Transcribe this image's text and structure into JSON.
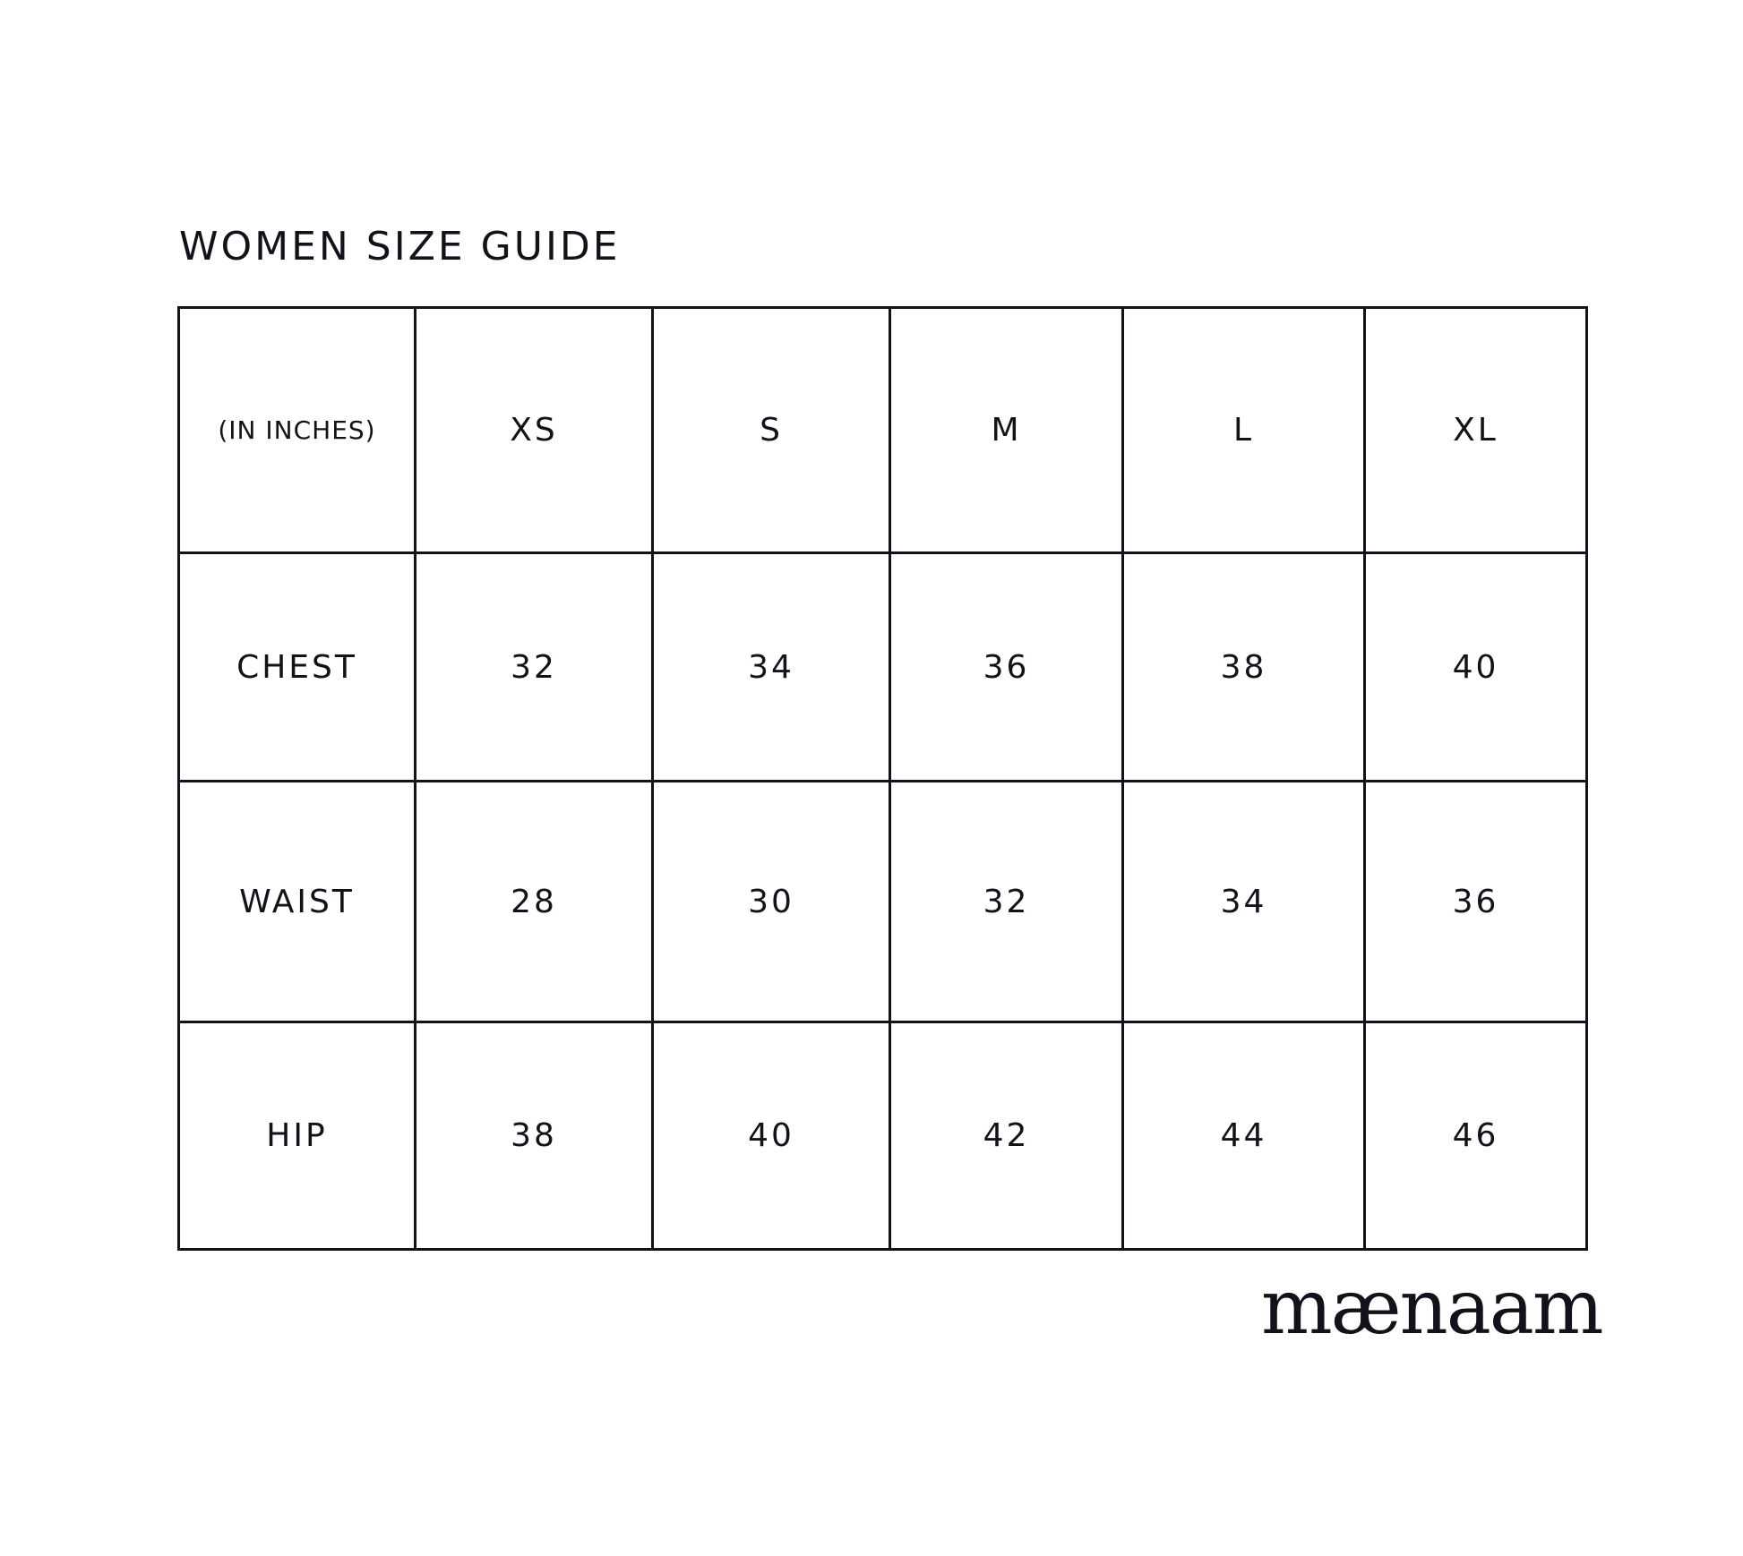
{
  "title": "WOMEN SIZE GUIDE",
  "table": {
    "unit_label": "(IN INCHES)",
    "sizes": [
      "XS",
      "S",
      "M",
      "L",
      "XL"
    ],
    "rows": [
      {
        "label": "CHEST",
        "values": [
          "32",
          "34",
          "36",
          "38",
          "40"
        ]
      },
      {
        "label": "WAIST",
        "values": [
          "28",
          "30",
          "32",
          "34",
          "36"
        ]
      },
      {
        "label": "HIP",
        "values": [
          "38",
          "40",
          "42",
          "44",
          "46"
        ]
      }
    ]
  },
  "brand": "mænaam",
  "colors": {
    "ink": "#15111a",
    "background": "#ffffff"
  }
}
